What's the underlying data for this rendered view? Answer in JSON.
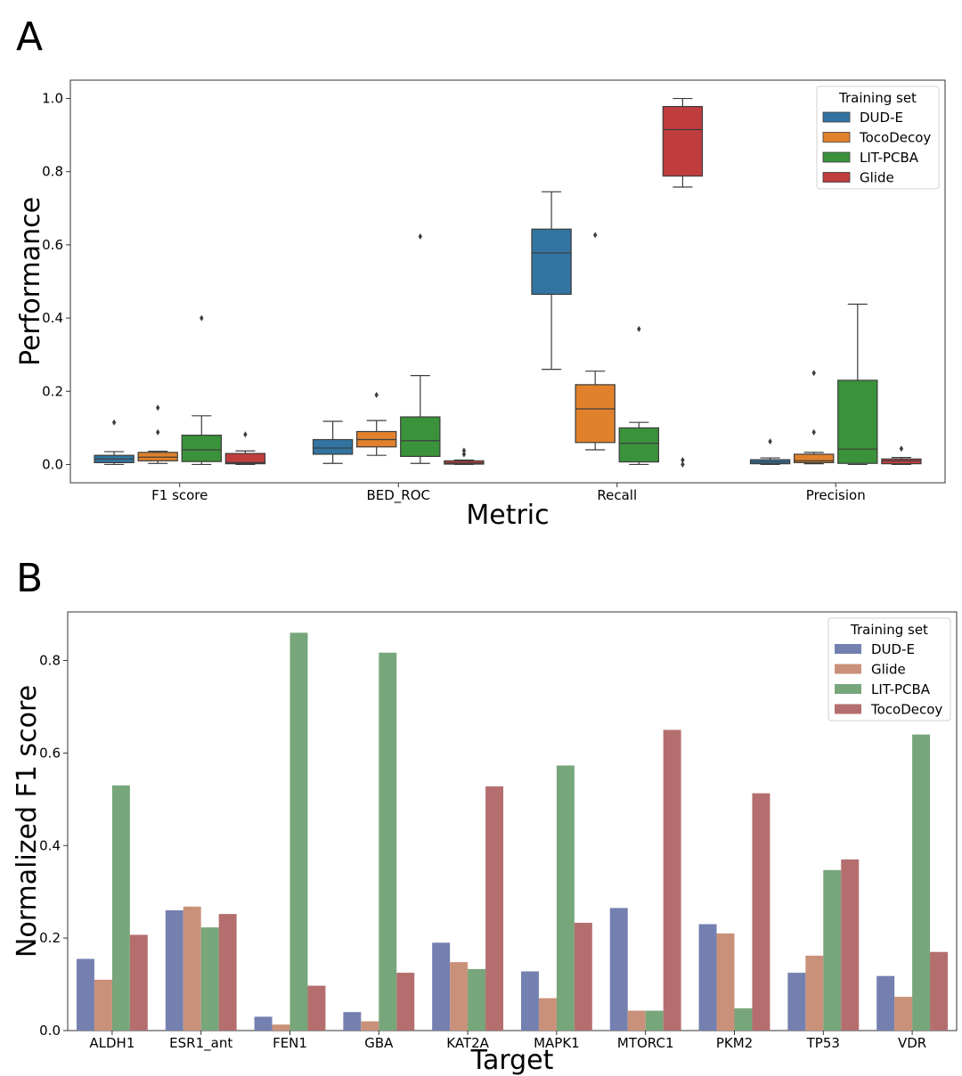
{
  "chart_data": [
    {
      "panel_label": "A",
      "type": "box",
      "xlabel": "Metric",
      "ylabel": "Performance",
      "categories": [
        "F1 score",
        "BED_ROC",
        "Recall",
        "Precision"
      ],
      "ylim": [
        -0.05,
        1.05
      ],
      "yticks": [
        "0.0",
        "0.2",
        "0.4",
        "0.6",
        "0.8",
        "1.0"
      ],
      "legend": {
        "title": "Training set",
        "placement": "top-right"
      },
      "series": [
        {
          "name": "DUD-E",
          "color": "#3274a1",
          "boxes": [
            {
              "whislo": 0.0,
              "q1": 0.005,
              "med": 0.015,
              "q3": 0.025,
              "whishi": 0.035,
              "fliers": [
                0.115
              ]
            },
            {
              "whislo": 0.003,
              "q1": 0.028,
              "med": 0.045,
              "q3": 0.068,
              "whishi": 0.118,
              "fliers": []
            },
            {
              "whislo": 0.26,
              "q1": 0.465,
              "med": 0.578,
              "q3": 0.643,
              "whishi": 0.745,
              "fliers": []
            },
            {
              "whislo": 0.0,
              "q1": 0.002,
              "med": 0.007,
              "q3": 0.013,
              "whishi": 0.018,
              "fliers": [
                0.063
              ]
            }
          ]
        },
        {
          "name": "TocoDecoy",
          "color": "#e1812c",
          "boxes": [
            {
              "whislo": 0.003,
              "q1": 0.01,
              "med": 0.02,
              "q3": 0.033,
              "whishi": 0.036,
              "fliers": [
                0.088,
                0.155
              ]
            },
            {
              "whislo": 0.025,
              "q1": 0.048,
              "med": 0.068,
              "q3": 0.09,
              "whishi": 0.12,
              "fliers": [
                0.19
              ]
            },
            {
              "whislo": 0.04,
              "q1": 0.06,
              "med": 0.152,
              "q3": 0.218,
              "whishi": 0.255,
              "fliers": [
                0.627
              ]
            },
            {
              "whislo": 0.002,
              "q1": 0.005,
              "med": 0.01,
              "q3": 0.028,
              "whishi": 0.033,
              "fliers": [
                0.088,
                0.25
              ]
            }
          ]
        },
        {
          "name": "LIT-PCBA",
          "color": "#3a923a",
          "boxes": [
            {
              "whislo": 0.0,
              "q1": 0.008,
              "med": 0.04,
              "q3": 0.08,
              "whishi": 0.133,
              "fliers": [
                0.4
              ]
            },
            {
              "whislo": 0.003,
              "q1": 0.022,
              "med": 0.065,
              "q3": 0.13,
              "whishi": 0.243,
              "fliers": [
                0.623
              ]
            },
            {
              "whislo": 0.0,
              "q1": 0.007,
              "med": 0.058,
              "q3": 0.1,
              "whishi": 0.115,
              "fliers": [
                0.37
              ]
            },
            {
              "whislo": 0.0,
              "q1": 0.003,
              "med": 0.042,
              "q3": 0.23,
              "whishi": 0.438,
              "fliers": []
            }
          ]
        },
        {
          "name": "Glide",
          "color": "#c03d3e",
          "boxes": [
            {
              "whislo": 0.0,
              "q1": 0.002,
              "med": 0.005,
              "q3": 0.03,
              "whishi": 0.037,
              "fliers": [
                0.082
              ]
            },
            {
              "whislo": 0.0,
              "q1": 0.001,
              "med": 0.004,
              "q3": 0.01,
              "whishi": 0.012,
              "fliers": [
                0.028,
                0.038
              ]
            },
            {
              "whislo": 0.758,
              "q1": 0.788,
              "med": 0.915,
              "q3": 0.978,
              "whishi": 1.0,
              "fliers": [
                0.0,
                0.012
              ]
            },
            {
              "whislo": 0.0,
              "q1": 0.002,
              "med": 0.01,
              "q3": 0.015,
              "whishi": 0.019,
              "fliers": [
                0.043
              ]
            }
          ]
        }
      ]
    },
    {
      "panel_label": "B",
      "type": "bar",
      "xlabel": "Target",
      "ylabel": "Normalized F1 score",
      "categories": [
        "ALDH1",
        "ESR1_ant",
        "FEN1",
        "GBA",
        "KAT2A",
        "MAPK1",
        "MTORC1",
        "PKM2",
        "TP53",
        "VDR"
      ],
      "ylim": [
        0,
        0.905
      ],
      "yticks": [
        "0.0",
        "0.2",
        "0.4",
        "0.6",
        "0.8"
      ],
      "legend": {
        "title": "Training set",
        "placement": "top-right"
      },
      "series": [
        {
          "name": "DUD-E",
          "color": "#7480b0",
          "values": [
            0.155,
            0.26,
            0.03,
            0.04,
            0.19,
            0.128,
            0.265,
            0.23,
            0.125,
            0.118
          ]
        },
        {
          "name": "Glide",
          "color": "#c9917a",
          "values": [
            0.11,
            0.268,
            0.013,
            0.02,
            0.148,
            0.07,
            0.043,
            0.21,
            0.162,
            0.073
          ]
        },
        {
          "name": "LIT-PCBA",
          "color": "#77a67a",
          "values": [
            0.53,
            0.223,
            0.86,
            0.817,
            0.133,
            0.573,
            0.043,
            0.048,
            0.347,
            0.64
          ]
        },
        {
          "name": "TocoDecoy",
          "color": "#b46e6e",
          "values": [
            0.207,
            0.252,
            0.097,
            0.125,
            0.528,
            0.233,
            0.65,
            0.513,
            0.37,
            0.17
          ]
        }
      ]
    }
  ]
}
